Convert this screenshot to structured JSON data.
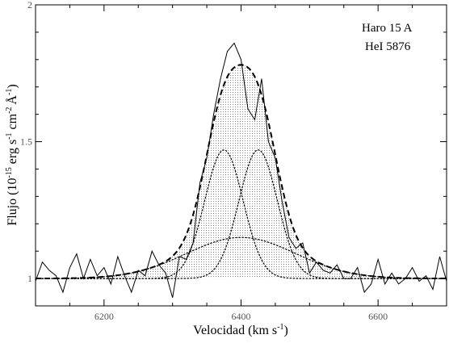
{
  "chart_data": {
    "type": "line",
    "annotations": [
      "Haro 15 A",
      "HeI 5876"
    ],
    "xlabel": {
      "text": "Velocidad (km s",
      "sup": "-1",
      "close": ")"
    },
    "ylabel": {
      "prefix": "Flujo (10",
      "exp1": "-15",
      "mid1": " erg s",
      "exp2": "-1",
      "mid2": " cm",
      "exp3": "-2",
      "angstrom": "Å",
      "exp4": "-1",
      "close": ")"
    },
    "xlim": [
      6100,
      6700
    ],
    "ylim": [
      0.9,
      2.0
    ],
    "x_ticks": [
      6200,
      6400,
      6600
    ],
    "x_tick_labels": [
      "6200",
      "6400",
      "6600"
    ],
    "y_ticks": [
      1.0,
      1.5,
      2.0
    ],
    "y_tick_labels": [
      "1",
      "1.5",
      "2"
    ],
    "continuum": 1.0,
    "series": [
      {
        "style": "solid",
        "x": [
          6100,
          6110,
          6120,
          6130,
          6140,
          6150,
          6160,
          6170,
          6180,
          6190,
          6200,
          6210,
          6220,
          6230,
          6240,
          6250,
          6260,
          6270,
          6280,
          6290,
          6300,
          6310,
          6320,
          6330,
          6340,
          6350,
          6360,
          6370,
          6380,
          6390,
          6400,
          6410,
          6420,
          6430,
          6440,
          6450,
          6460,
          6470,
          6480,
          6490,
          6500,
          6510,
          6520,
          6530,
          6540,
          6550,
          6560,
          6570,
          6580,
          6590,
          6600,
          6610,
          6620,
          6630,
          6640,
          6650,
          6660,
          6670,
          6680,
          6690,
          6700
        ],
        "y": [
          0.99,
          1.06,
          1.03,
          1.01,
          0.95,
          1.04,
          1.09,
          1.0,
          1.07,
          1.01,
          1.04,
          0.98,
          1.08,
          1.01,
          0.95,
          1.03,
          1.01,
          1.1,
          1.05,
          1.02,
          0.93,
          1.08,
          1.07,
          1.13,
          1.35,
          1.44,
          1.6,
          1.73,
          1.83,
          1.86,
          1.8,
          1.62,
          1.58,
          1.73,
          1.5,
          1.44,
          1.28,
          1.15,
          1.11,
          1.13,
          1.02,
          1.06,
          1.03,
          1.02,
          1.05,
          1.0,
          1.0,
          1.04,
          0.95,
          0.98,
          1.07,
          0.98,
          1.02,
          0.98,
          1.0,
          1.04,
          0.99,
          1.01,
          0.96,
          1.08,
          0.99
        ]
      },
      {
        "style": "dashed",
        "components": [
          {
            "center": 6375,
            "amplitude": 0.47,
            "sigma": 28
          },
          {
            "center": 6425,
            "amplitude": 0.47,
            "sigma": 28
          },
          {
            "center": 6400,
            "amplitude": 0.15,
            "sigma": 80
          }
        ]
      },
      {
        "style": "dotted",
        "components": [
          {
            "center": 6375,
            "amplitude": 0.47,
            "sigma": 28
          },
          {
            "center": 6425,
            "amplitude": 0.47,
            "sigma": 28
          },
          {
            "center": 6400,
            "amplitude": 0.15,
            "sigma": 80
          }
        ]
      }
    ],
    "grid": false,
    "legend": "none"
  }
}
